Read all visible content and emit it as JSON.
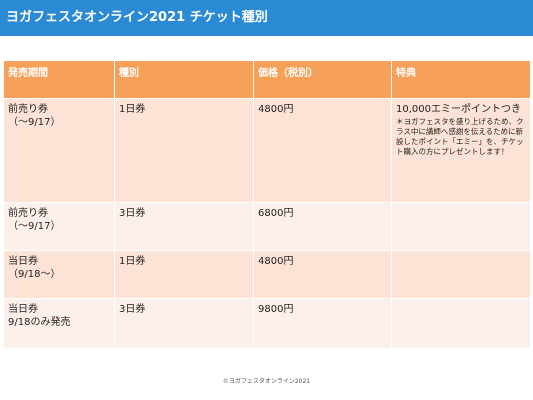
{
  "header": {
    "title": "ヨガフェスタオンライン2021 チケット種別"
  },
  "table": {
    "columns": [
      "発売期間",
      "種別",
      "価格（税別）",
      "特典"
    ],
    "rows": [
      {
        "period_line1": "前売り券",
        "period_line2": "（〜9/17）",
        "type": "1日券",
        "price": "4800円",
        "bonus": "10,000エミーポイントつき",
        "note": "＊ヨガフェスタを盛り上げるため、クラス中に講師へ感謝を伝えるために新設したポイント「エミー」を、チケット購入の方にプレゼントします！"
      },
      {
        "period_line1": "前売り券",
        "period_line2": "（〜9/17）",
        "type": "3日券",
        "price": "6800円",
        "bonus": "",
        "note": ""
      },
      {
        "period_line1": "当日券",
        "period_line2": "（9/18〜）",
        "type": "1日券",
        "price": "4800円",
        "bonus": "",
        "note": ""
      },
      {
        "period_line1": "当日券",
        "period_line2": "9/18のみ発売",
        "type": "3日券",
        "price": "9800円",
        "bonus": "",
        "note": ""
      }
    ]
  },
  "footer": {
    "copyright": "©ヨガフェスタオンライン2021"
  },
  "colors": {
    "header_bg": "#2a8ad4",
    "table_header_bg": "#f7a05a",
    "row_bg": "#fde3d6",
    "row_alt_bg": "#fdf0ea"
  }
}
